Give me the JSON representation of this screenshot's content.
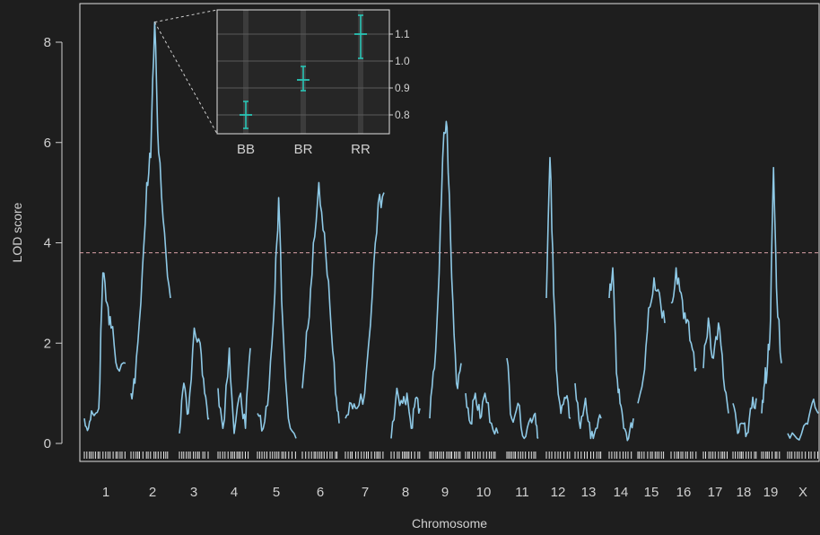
{
  "chart_data": {
    "type": "line",
    "xlabel": "Chromosome",
    "ylabel": "LOD score",
    "ylim": [
      0,
      8.6
    ],
    "yticks": [
      "0",
      "2",
      "4",
      "6",
      "8"
    ],
    "threshold": 3.8,
    "colors": {
      "background": "#1e1e1e",
      "line": "#8ec9e6",
      "threshold": "#d9a0a8",
      "inset_marker": "#29c4b4",
      "frame": "#e0e0e0"
    },
    "chromosomes": [
      {
        "label": "1",
        "profile": [
          [
            0,
            0.5
          ],
          [
            0.1,
            0.3
          ],
          [
            0.2,
            0.6
          ],
          [
            0.35,
            0.7
          ],
          [
            0.45,
            3.4
          ],
          [
            0.55,
            2.8
          ],
          [
            0.65,
            2.3
          ],
          [
            0.8,
            1.5
          ],
          [
            1,
            1.6
          ]
        ]
      },
      {
        "label": "2",
        "profile": [
          [
            0,
            1.0
          ],
          [
            0.1,
            1.2
          ],
          [
            0.25,
            2.8
          ],
          [
            0.4,
            5.2
          ],
          [
            0.5,
            5.7
          ],
          [
            0.6,
            8.4
          ],
          [
            0.7,
            5.8
          ],
          [
            0.85,
            4.2
          ],
          [
            1,
            2.9
          ]
        ]
      },
      {
        "label": "3",
        "profile": [
          [
            0,
            0.2
          ],
          [
            0.15,
            1.2
          ],
          [
            0.3,
            0.6
          ],
          [
            0.5,
            2.3
          ],
          [
            0.7,
            2.0
          ],
          [
            0.85,
            1.0
          ],
          [
            1,
            0.5
          ]
        ]
      },
      {
        "label": "4",
        "profile": [
          [
            0,
            1.1
          ],
          [
            0.15,
            0.3
          ],
          [
            0.35,
            1.9
          ],
          [
            0.5,
            0.2
          ],
          [
            0.7,
            1.0
          ],
          [
            0.85,
            0.3
          ],
          [
            1,
            1.9
          ]
        ]
      },
      {
        "label": "5",
        "profile": [
          [
            0,
            0.6
          ],
          [
            0.15,
            0.3
          ],
          [
            0.3,
            1.1
          ],
          [
            0.45,
            3.0
          ],
          [
            0.55,
            4.9
          ],
          [
            0.65,
            2.5
          ],
          [
            0.8,
            0.5
          ],
          [
            1,
            0.1
          ]
        ]
      },
      {
        "label": "6",
        "profile": [
          [
            0,
            1.1
          ],
          [
            0.15,
            2.3
          ],
          [
            0.3,
            4.0
          ],
          [
            0.45,
            5.2
          ],
          [
            0.6,
            4.2
          ],
          [
            0.75,
            2.7
          ],
          [
            0.9,
            1.0
          ],
          [
            1,
            0.4
          ]
        ]
      },
      {
        "label": "7",
        "profile": [
          [
            0,
            0.5
          ],
          [
            0.15,
            0.8
          ],
          [
            0.3,
            0.7
          ],
          [
            0.5,
            1.0
          ],
          [
            0.7,
            3.0
          ],
          [
            0.85,
            4.8
          ],
          [
            1,
            5.0
          ]
        ]
      },
      {
        "label": "8",
        "profile": [
          [
            0,
            0.1
          ],
          [
            0.2,
            1.1
          ],
          [
            0.4,
            0.8
          ],
          [
            0.55,
            1.0
          ],
          [
            0.7,
            0.3
          ],
          [
            0.85,
            0.9
          ],
          [
            1,
            0.7
          ]
        ]
      },
      {
        "label": "9",
        "profile": [
          [
            0,
            0.5
          ],
          [
            0.15,
            1.5
          ],
          [
            0.3,
            3.4
          ],
          [
            0.45,
            6.2
          ],
          [
            0.55,
            6.3
          ],
          [
            0.7,
            3.3
          ],
          [
            0.85,
            1.2
          ],
          [
            1,
            1.6
          ]
        ]
      },
      {
        "label": "10",
        "profile": [
          [
            0,
            1.0
          ],
          [
            0.15,
            0.4
          ],
          [
            0.3,
            1.0
          ],
          [
            0.45,
            0.5
          ],
          [
            0.6,
            1.0
          ],
          [
            0.8,
            0.4
          ],
          [
            1,
            0.2
          ]
        ]
      },
      {
        "label": "11",
        "profile": [
          [
            0,
            1.7
          ],
          [
            0.15,
            0.5
          ],
          [
            0.35,
            0.8
          ],
          [
            0.55,
            0.1
          ],
          [
            0.75,
            0.5
          ],
          [
            0.9,
            0.6
          ],
          [
            1,
            0.1
          ]
        ]
      },
      {
        "label": "12",
        "profile": [
          [
            0,
            2.9
          ],
          [
            0.15,
            5.7
          ],
          [
            0.3,
            3.0
          ],
          [
            0.45,
            1.3
          ],
          [
            0.6,
            0.6
          ],
          [
            0.8,
            0.9
          ],
          [
            1,
            0.5
          ]
        ]
      },
      {
        "label": "13",
        "profile": [
          [
            0,
            1.2
          ],
          [
            0.2,
            0.3
          ],
          [
            0.4,
            0.9
          ],
          [
            0.6,
            0.1
          ],
          [
            0.8,
            0.3
          ],
          [
            1,
            0.5
          ]
        ]
      },
      {
        "label": "14",
        "profile": [
          [
            0,
            2.9
          ],
          [
            0.15,
            3.5
          ],
          [
            0.3,
            1.4
          ],
          [
            0.45,
            0.8
          ],
          [
            0.6,
            0.3
          ],
          [
            0.8,
            0.1
          ],
          [
            1,
            0.5
          ]
        ]
      },
      {
        "label": "15",
        "profile": [
          [
            0,
            0.8
          ],
          [
            0.2,
            1.3
          ],
          [
            0.4,
            2.7
          ],
          [
            0.6,
            3.3
          ],
          [
            0.8,
            3.0
          ],
          [
            1,
            2.4
          ]
        ]
      },
      {
        "label": "16",
        "profile": [
          [
            0,
            2.8
          ],
          [
            0.2,
            3.5
          ],
          [
            0.4,
            3.0
          ],
          [
            0.6,
            2.4
          ],
          [
            0.8,
            2.0
          ],
          [
            1,
            1.5
          ]
        ]
      },
      {
        "label": "17",
        "profile": [
          [
            0,
            1.5
          ],
          [
            0.2,
            2.5
          ],
          [
            0.4,
            1.7
          ],
          [
            0.6,
            2.4
          ],
          [
            0.8,
            1.3
          ],
          [
            1,
            0.6
          ]
        ]
      },
      {
        "label": "18",
        "profile": [
          [
            0,
            0.8
          ],
          [
            0.2,
            0.2
          ],
          [
            0.4,
            0.4
          ],
          [
            0.6,
            0.2
          ],
          [
            0.8,
            0.7
          ],
          [
            1,
            0.9
          ]
        ]
      },
      {
        "label": "19",
        "profile": [
          [
            0,
            0.6
          ],
          [
            0.15,
            1.2
          ],
          [
            0.3,
            1.6
          ],
          [
            0.45,
            2.5
          ],
          [
            0.6,
            5.5
          ],
          [
            0.75,
            3.1
          ],
          [
            1,
            1.6
          ]
        ]
      },
      {
        "label": "X",
        "profile": [
          [
            0,
            0.2
          ],
          [
            0.3,
            0.1
          ],
          [
            0.6,
            0.4
          ],
          [
            0.8,
            0.8
          ],
          [
            1,
            0.6
          ]
        ]
      }
    ],
    "inset": {
      "type": "scatter-errorbar",
      "categories": [
        "BB",
        "BR",
        "RR"
      ],
      "values": [
        0.8,
        0.93,
        1.1
      ],
      "err_low": [
        0.75,
        0.89,
        1.01
      ],
      "err_high": [
        0.85,
        0.98,
        1.17
      ],
      "ylim": [
        0.73,
        1.19
      ],
      "yticks": [
        "0.8",
        "0.9",
        "1.0",
        "1.1"
      ],
      "source_chromosome": "2"
    }
  }
}
